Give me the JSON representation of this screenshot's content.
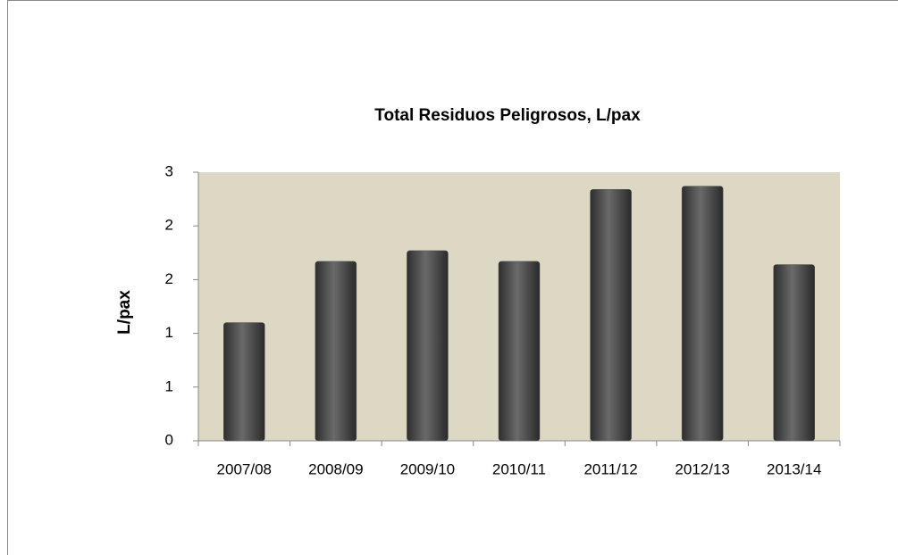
{
  "chart_data": {
    "type": "bar",
    "title": "Total Residuos Peligrosos, L/pax",
    "y_label": "L/pax",
    "categories": [
      "2007/08",
      "2008/09",
      "2009/10",
      "2010/11",
      "2011/12",
      "2012/13",
      "2013/14"
    ],
    "values": [
      1.1,
      1.67,
      1.77,
      1.67,
      2.34,
      2.37,
      1.64
    ],
    "color": "#555555",
    "ylim": [
      0,
      2.5
    ],
    "yticks": [
      0,
      {
        "value": 0.5,
        "label": "1"
      },
      1,
      {
        "value": 1.5,
        "label": "2"
      },
      2,
      {
        "value": 2.5,
        "label": "3"
      }
    ],
    "grid": false
  }
}
